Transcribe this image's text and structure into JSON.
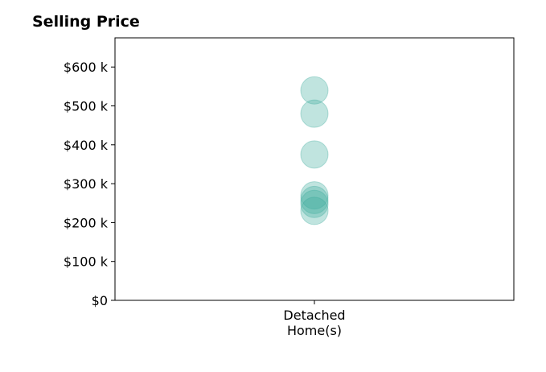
{
  "chart_data": {
    "type": "scatter",
    "title": "Selling Price",
    "xlabel": "",
    "ylabel": "",
    "categories": [
      "Detached\nHome(s)"
    ],
    "y_ticks": [
      {
        "value": 0,
        "label": "$0"
      },
      {
        "value": 100000,
        "label": "$100 k"
      },
      {
        "value": 200000,
        "label": "$200 k"
      },
      {
        "value": 300000,
        "label": "$300 k"
      },
      {
        "value": 400000,
        "label": "$400 k"
      },
      {
        "value": 500000,
        "label": "$500 k"
      },
      {
        "value": 600000,
        "label": "$600 k"
      }
    ],
    "ylim": [
      0,
      675000
    ],
    "grid": false,
    "series": [
      {
        "category": "Detached\nHome(s)",
        "color": "#3aaa9a",
        "values": [
          540000,
          480000,
          375000,
          270000,
          258000,
          248000,
          230000
        ]
      }
    ]
  }
}
